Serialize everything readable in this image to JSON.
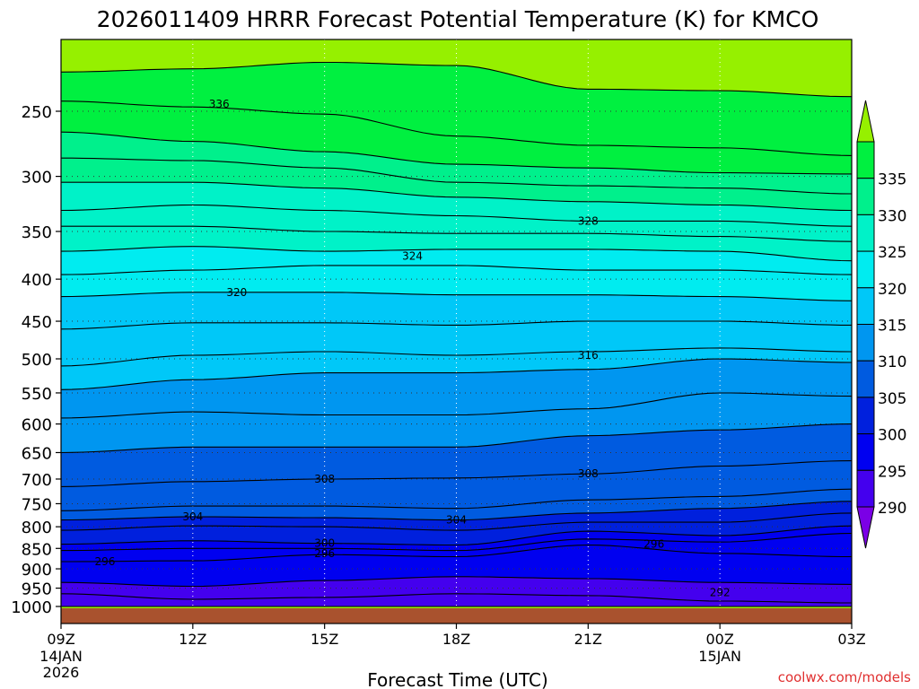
{
  "chart_data": {
    "type": "heatmap",
    "title": "2026011409 HRRR Forecast Potential Temperature (K) for KMCO",
    "xlabel": "Forecast Time (UTC)",
    "ylabel": "",
    "credit": "coolwx.com/models",
    "x_ticks": [
      {
        "hour": 0,
        "label": "09Z",
        "sub": [
          "14JAN",
          "2026"
        ]
      },
      {
        "hour": 3,
        "label": "12Z",
        "sub": []
      },
      {
        "hour": 6,
        "label": "15Z",
        "sub": []
      },
      {
        "hour": 9,
        "label": "18Z",
        "sub": []
      },
      {
        "hour": 12,
        "label": "21Z",
        "sub": []
      },
      {
        "hour": 15,
        "label": "00Z",
        "sub": [
          "15JAN"
        ]
      },
      {
        "hour": 18,
        "label": "03Z",
        "sub": []
      }
    ],
    "xlim": [
      0,
      18
    ],
    "y_axis": {
      "scale": "log-pressure",
      "inverted": true,
      "range_hPa": [
        1000,
        200
      ]
    },
    "y_ticks": [
      "250",
      "300",
      "350",
      "400",
      "450",
      "500",
      "550",
      "600",
      "650",
      "700",
      "750",
      "800",
      "850",
      "900",
      "950",
      "1000"
    ],
    "grid": {
      "dotted": true
    },
    "colorbar": {
      "levels": [
        290,
        295,
        300,
        305,
        310,
        315,
        320,
        325,
        330,
        335
      ],
      "labels": [
        "290",
        "295",
        "300",
        "305",
        "310",
        "315",
        "320",
        "325",
        "330",
        "335"
      ],
      "colors": [
        "#7b00e6",
        "#4400ee",
        "#0000f0",
        "#0020dd",
        "#005be0",
        "#0096f0",
        "#00c8f8",
        "#00ecf0",
        "#00f2c8",
        "#00f08c",
        "#00f040",
        "#96f000"
      ],
      "extend": "both"
    },
    "ground_color": "#a9522e",
    "isentrope_labels": [
      {
        "text": "336",
        "hour": 3.6,
        "p": 245
      },
      {
        "text": "328",
        "hour": 12.0,
        "p": 340
      },
      {
        "text": "324",
        "hour": 8.0,
        "p": 375
      },
      {
        "text": "320",
        "hour": 4.0,
        "p": 415
      },
      {
        "text": "316",
        "hour": 12.0,
        "p": 495
      },
      {
        "text": "308",
        "hour": 6.0,
        "p": 700
      },
      {
        "text": "308",
        "hour": 12.0,
        "p": 690
      },
      {
        "text": "304",
        "hour": 3.0,
        "p": 778
      },
      {
        "text": "304",
        "hour": 9.0,
        "p": 785
      },
      {
        "text": "300",
        "hour": 6.0,
        "p": 838
      },
      {
        "text": "296",
        "hour": 6.0,
        "p": 862
      },
      {
        "text": "296",
        "hour": 1.0,
        "p": 882
      },
      {
        "text": "296",
        "hour": 13.5,
        "p": 840
      },
      {
        "text": "292",
        "hour": 15.0,
        "p": 962
      }
    ],
    "series": [
      {
        "value": 290,
        "x": [
          0,
          3,
          6,
          9,
          12,
          15,
          18
        ],
        "p": [
          1000,
          1000,
          1000,
          1000,
          1000,
          1000,
          1000
        ]
      },
      {
        "value": 292,
        "x": [
          0,
          3,
          6,
          9,
          12,
          15,
          18
        ],
        "p": [
          965,
          980,
          975,
          965,
          970,
          985,
          990
        ]
      },
      {
        "value": 294,
        "x": [
          0,
          3,
          6,
          9,
          12,
          15,
          18
        ],
        "p": [
          935,
          945,
          930,
          920,
          925,
          935,
          940
        ]
      },
      {
        "value": 296,
        "x": [
          0,
          3,
          6,
          9,
          12,
          15,
          18
        ],
        "p": [
          882,
          880,
          865,
          870,
          842,
          862,
          870
        ]
      },
      {
        "value": 298,
        "x": [
          0,
          3,
          6,
          9,
          12,
          15,
          18
        ],
        "p": [
          855,
          850,
          850,
          855,
          828,
          835,
          815
        ]
      },
      {
        "value": 300,
        "x": [
          0,
          3,
          6,
          9,
          12,
          15,
          18
        ],
        "p": [
          840,
          832,
          838,
          842,
          810,
          820,
          798
        ]
      },
      {
        "value": 302,
        "x": [
          0,
          3,
          6,
          9,
          12,
          15,
          18
        ],
        "p": [
          808,
          798,
          800,
          808,
          790,
          790,
          770
        ]
      },
      {
        "value": 304,
        "x": [
          0,
          3,
          6,
          9,
          12,
          15,
          18
        ],
        "p": [
          785,
          778,
          780,
          785,
          770,
          760,
          745
        ]
      },
      {
        "value": 306,
        "x": [
          0,
          3,
          6,
          9,
          12,
          15,
          18
        ],
        "p": [
          765,
          755,
          755,
          760,
          742,
          735,
          720
        ]
      },
      {
        "value": 308,
        "x": [
          0,
          3,
          6,
          9,
          12,
          15,
          18
        ],
        "p": [
          715,
          705,
          700,
          698,
          690,
          675,
          665
        ]
      },
      {
        "value": 310,
        "x": [
          0,
          3,
          6,
          9,
          12,
          15,
          18
        ],
        "p": [
          650,
          640,
          640,
          640,
          620,
          610,
          600
        ]
      },
      {
        "value": 312,
        "x": [
          0,
          3,
          6,
          9,
          12,
          15,
          18
        ],
        "p": [
          590,
          580,
          585,
          585,
          575,
          550,
          555
        ]
      },
      {
        "value": 314,
        "x": [
          0,
          3,
          6,
          9,
          12,
          15,
          18
        ],
        "p": [
          545,
          530,
          520,
          520,
          515,
          500,
          505
        ]
      },
      {
        "value": 316,
        "x": [
          0,
          3,
          6,
          9,
          12,
          15,
          18
        ],
        "p": [
          510,
          495,
          490,
          495,
          490,
          485,
          490
        ]
      },
      {
        "value": 318,
        "x": [
          0,
          3,
          6,
          9,
          12,
          15,
          18
        ],
        "p": [
          460,
          452,
          452,
          455,
          450,
          450,
          455
        ]
      },
      {
        "value": 320,
        "x": [
          0,
          3,
          6,
          9,
          12,
          15,
          18
        ],
        "p": [
          420,
          415,
          415,
          418,
          418,
          420,
          425
        ]
      },
      {
        "value": 322,
        "x": [
          0,
          3,
          6,
          9,
          12,
          15,
          18
        ],
        "p": [
          395,
          390,
          385,
          385,
          390,
          390,
          395
        ]
      },
      {
        "value": 324,
        "x": [
          0,
          3,
          6,
          9,
          12,
          15,
          18
        ],
        "p": [
          370,
          365,
          370,
          368,
          368,
          370,
          380
        ]
      },
      {
        "value": 326,
        "x": [
          0,
          3,
          6,
          9,
          12,
          15,
          18
        ],
        "p": [
          345,
          345,
          350,
          352,
          352,
          355,
          360
        ]
      },
      {
        "value": 328,
        "x": [
          0,
          3,
          6,
          9,
          12,
          15,
          18
        ],
        "p": [
          330,
          325,
          330,
          335,
          340,
          340,
          345
        ]
      },
      {
        "value": 330,
        "x": [
          0,
          3,
          6,
          9,
          12,
          15,
          18
        ],
        "p": [
          305,
          305,
          310,
          318,
          322,
          325,
          330
        ]
      },
      {
        "value": 332,
        "x": [
          0,
          3,
          6,
          9,
          12,
          15,
          18
        ],
        "p": [
          285,
          287,
          293,
          305,
          308,
          310,
          315
        ]
      },
      {
        "value": 334,
        "x": [
          0,
          3,
          6,
          9,
          12,
          15,
          18
        ],
        "p": [
          265,
          272,
          280,
          290,
          293,
          297,
          298
        ]
      },
      {
        "value": 336,
        "x": [
          0,
          3,
          6,
          9,
          12,
          15,
          18
        ],
        "p": [
          243,
          247,
          252,
          268,
          275,
          277,
          283
        ]
      },
      {
        "value": 338,
        "x": [
          0,
          3,
          6,
          9,
          12,
          15,
          18
        ],
        "p": [
          224,
          222,
          218,
          220,
          235,
          236,
          240
        ]
      }
    ]
  }
}
